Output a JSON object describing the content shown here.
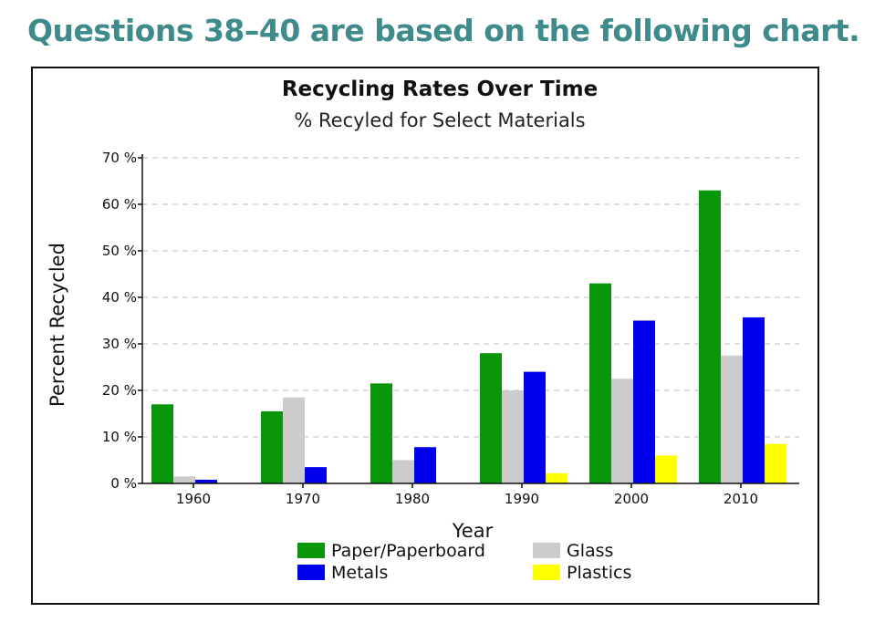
{
  "page": {
    "heading": "Questions 38–40 are based on the following chart."
  },
  "chart_data": {
    "type": "bar",
    "title": "Recycling Rates Over Time",
    "subtitle": "% Recyled for Select Materials",
    "xlabel": "Year",
    "ylabel": "Percent Recycled",
    "ylim": [
      0,
      70
    ],
    "yticks": [
      0,
      10,
      20,
      30,
      40,
      50,
      60,
      70
    ],
    "ytick_labels": [
      "0 %",
      "10 %",
      "20 %",
      "30 %",
      "40 %",
      "50 %",
      "60 %",
      "70 %"
    ],
    "grid": "horizontal dashed",
    "legend_position": "bottom",
    "categories": [
      "1960",
      "1970",
      "1980",
      "1990",
      "2000",
      "2010"
    ],
    "series": [
      {
        "name": "Paper/Paperboard",
        "color": "#0a960a",
        "values": [
          17,
          15.5,
          21.5,
          28,
          43,
          63
        ]
      },
      {
        "name": "Glass",
        "color": "#cccccc",
        "values": [
          1.5,
          18.5,
          5,
          20,
          22.5,
          27.5
        ]
      },
      {
        "name": "Metals",
        "color": "#0000ee",
        "values": [
          0.8,
          3.5,
          7.8,
          24,
          35,
          35.7
        ]
      },
      {
        "name": "Plastics",
        "color": "#ffff00",
        "values": [
          0,
          0,
          0,
          2.2,
          6,
          8.5
        ]
      }
    ]
  }
}
